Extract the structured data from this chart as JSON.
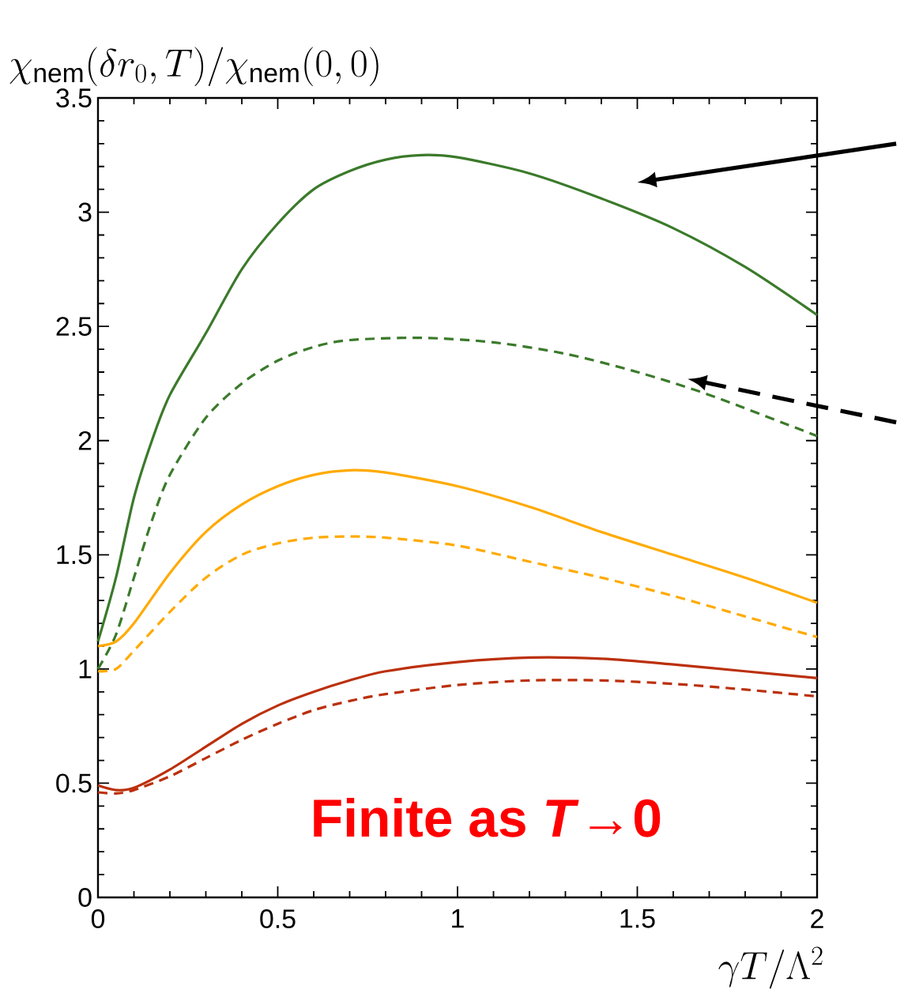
{
  "chart_data": {
    "type": "line",
    "ylabel": "\\chi_{\\mathrm{nem}}(\\delta r_0,T)/\\chi_{\\mathrm{nem}}(0,0)",
    "xlabel": "\\gamma T/\\Lambda^2",
    "xlim": [
      0,
      2
    ],
    "ylim": [
      0,
      3.5
    ],
    "xticks": [
      0,
      0.5,
      1,
      1.5,
      2
    ],
    "yticks": [
      0,
      0.5,
      1,
      1.5,
      2,
      2.5,
      3,
      3.5
    ],
    "grid": false,
    "marker": "none",
    "annotations": [
      "Finite as *T*→0"
    ],
    "series": [
      {
        "color": "#3b7a2b",
        "line_style": "solid",
        "x": [
          0,
          0.05,
          0.1,
          0.15,
          0.2,
          0.3,
          0.4,
          0.5,
          0.6,
          0.7,
          0.8,
          0.9,
          1.0,
          1.2,
          1.4,
          1.6,
          1.8,
          2.0
        ],
        "values": [
          1.12,
          1.4,
          1.75,
          2.0,
          2.2,
          2.47,
          2.75,
          2.95,
          3.1,
          3.18,
          3.23,
          3.25,
          3.24,
          3.17,
          3.06,
          2.93,
          2.76,
          2.55
        ]
      },
      {
        "color": "#3b7a2b",
        "line_style": "dashed",
        "x": [
          0,
          0.05,
          0.1,
          0.15,
          0.2,
          0.3,
          0.4,
          0.5,
          0.6,
          0.7,
          0.9,
          1.1,
          1.3,
          1.5,
          1.7,
          2.0
        ],
        "values": [
          1.0,
          1.15,
          1.4,
          1.65,
          1.85,
          2.1,
          2.25,
          2.35,
          2.41,
          2.44,
          2.45,
          2.43,
          2.38,
          2.3,
          2.2,
          2.02
        ]
      },
      {
        "color": "#ffaa00",
        "line_style": "solid",
        "x": [
          0,
          0.05,
          0.1,
          0.2,
          0.3,
          0.4,
          0.5,
          0.6,
          0.7,
          0.8,
          1.0,
          1.2,
          1.4,
          1.6,
          1.8,
          2.0
        ],
        "values": [
          1.1,
          1.12,
          1.2,
          1.42,
          1.6,
          1.72,
          1.8,
          1.85,
          1.87,
          1.86,
          1.8,
          1.71,
          1.6,
          1.5,
          1.4,
          1.29
        ]
      },
      {
        "color": "#ffaa00",
        "line_style": "dashed",
        "x": [
          0,
          0.05,
          0.1,
          0.2,
          0.3,
          0.4,
          0.5,
          0.6,
          0.7,
          0.8,
          1.0,
          1.2,
          1.4,
          1.6,
          1.8,
          2.0
        ],
        "values": [
          0.99,
          1.0,
          1.08,
          1.25,
          1.4,
          1.5,
          1.55,
          1.575,
          1.58,
          1.575,
          1.54,
          1.47,
          1.4,
          1.32,
          1.23,
          1.14
        ]
      },
      {
        "color": "#bb300c",
        "line_style": "solid",
        "x": [
          0,
          0.05,
          0.1,
          0.2,
          0.3,
          0.4,
          0.5,
          0.6,
          0.7,
          0.8,
          1.0,
          1.2,
          1.4,
          1.6,
          1.8,
          2.0
        ],
        "values": [
          0.49,
          0.47,
          0.48,
          0.56,
          0.66,
          0.76,
          0.84,
          0.9,
          0.95,
          0.99,
          1.03,
          1.05,
          1.045,
          1.02,
          0.99,
          0.96
        ]
      },
      {
        "color": "#bb300c",
        "line_style": "dashed",
        "x": [
          0,
          0.05,
          0.1,
          0.2,
          0.3,
          0.4,
          0.5,
          0.6,
          0.7,
          0.8,
          1.0,
          1.2,
          1.4,
          1.6,
          1.8,
          2.0
        ],
        "values": [
          0.46,
          0.455,
          0.47,
          0.53,
          0.61,
          0.69,
          0.76,
          0.82,
          0.86,
          0.89,
          0.93,
          0.95,
          0.95,
          0.935,
          0.91,
          0.88
        ]
      }
    ]
  }
}
